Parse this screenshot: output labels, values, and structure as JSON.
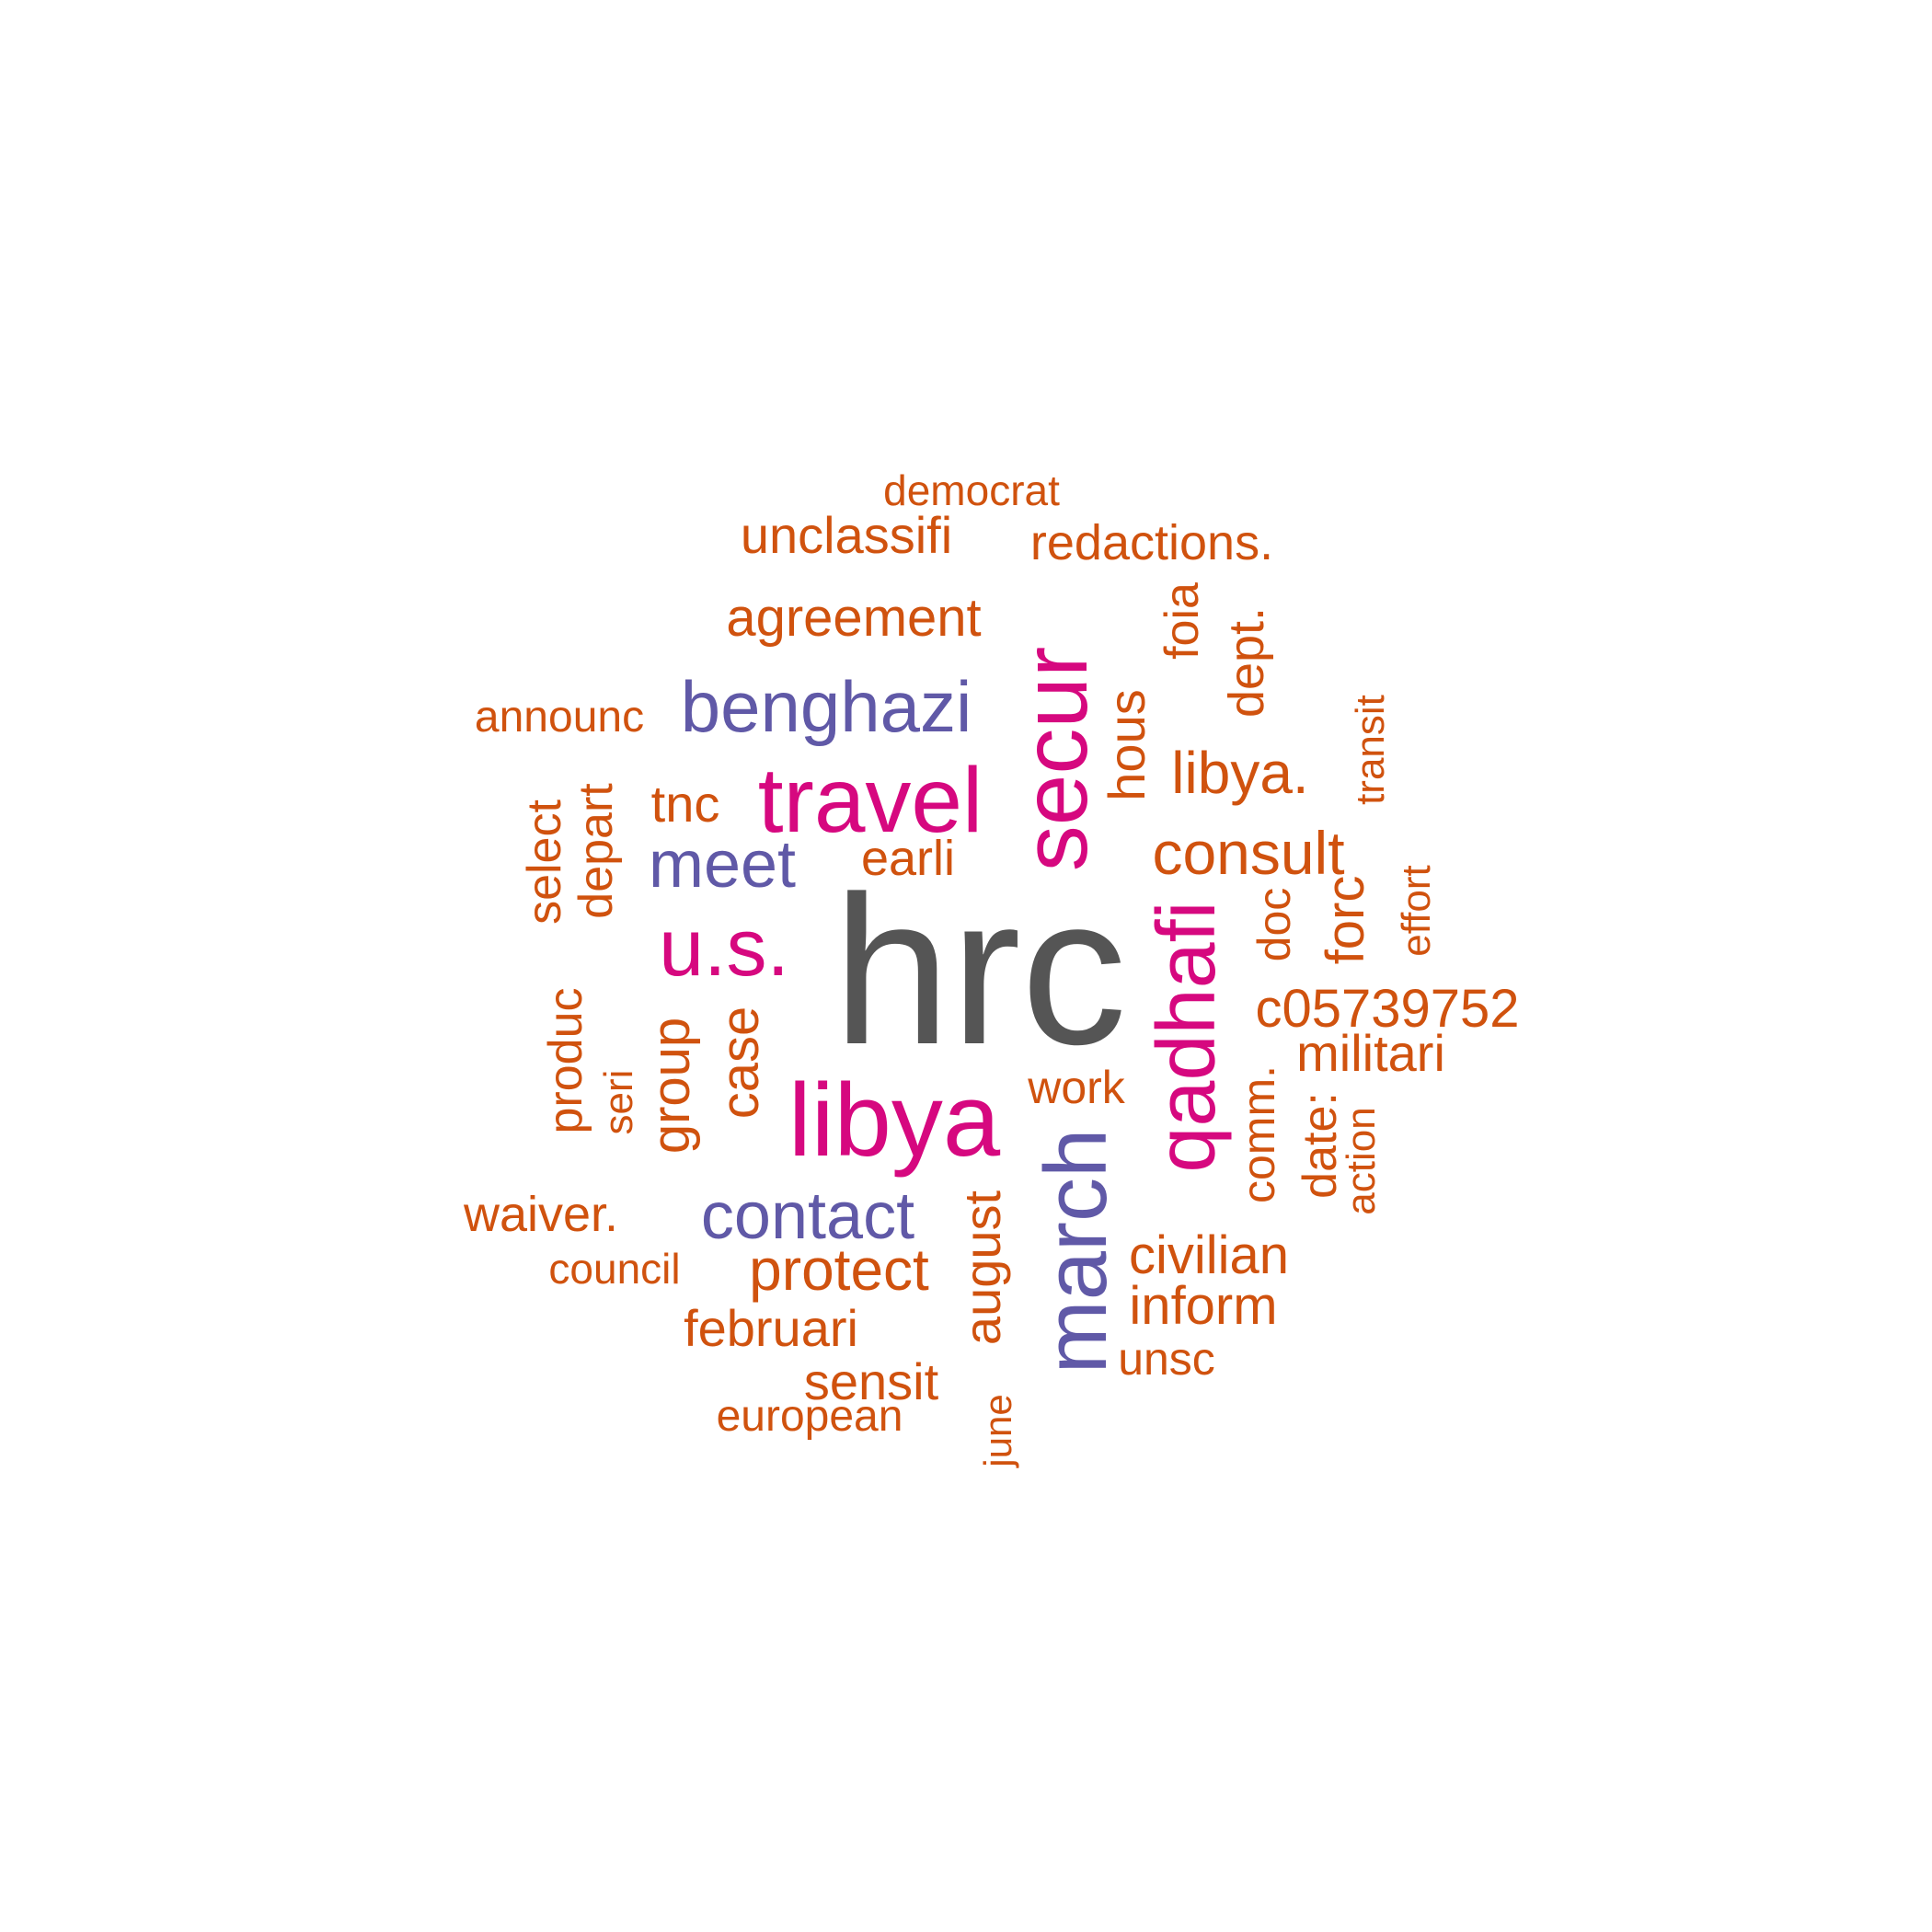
{
  "colors": {
    "grey": "#555555",
    "magenta": "#d6087f",
    "purple": "#6059a7",
    "orange": "#d0520e"
  },
  "words": [
    {
      "text": "hrc",
      "color": "grey"
    },
    {
      "text": "libya",
      "color": "magenta"
    },
    {
      "text": "travel",
      "color": "magenta"
    },
    {
      "text": "u.s.",
      "color": "magenta"
    },
    {
      "text": "secur",
      "color": "magenta"
    },
    {
      "text": "qadhafi",
      "color": "magenta"
    },
    {
      "text": "march",
      "color": "purple"
    },
    {
      "text": "benghazi",
      "color": "purple"
    },
    {
      "text": "meet",
      "color": "purple"
    },
    {
      "text": "contact",
      "color": "purple"
    },
    {
      "text": "democrat",
      "color": "orange"
    },
    {
      "text": "unclassifi",
      "color": "orange"
    },
    {
      "text": "redactions.",
      "color": "orange"
    },
    {
      "text": "agreement",
      "color": "orange"
    },
    {
      "text": "foia",
      "color": "orange"
    },
    {
      "text": "dept.",
      "color": "orange"
    },
    {
      "text": "announc",
      "color": "orange"
    },
    {
      "text": "hous",
      "color": "orange"
    },
    {
      "text": "transit",
      "color": "orange"
    },
    {
      "text": "libya.",
      "color": "orange"
    },
    {
      "text": "tnc",
      "color": "orange"
    },
    {
      "text": "select",
      "color": "orange"
    },
    {
      "text": "depart",
      "color": "orange"
    },
    {
      "text": "earli",
      "color": "orange"
    },
    {
      "text": "consult",
      "color": "orange"
    },
    {
      "text": "effort",
      "color": "orange"
    },
    {
      "text": "doc",
      "color": "orange"
    },
    {
      "text": "forc",
      "color": "orange"
    },
    {
      "text": "c05739752",
      "color": "orange"
    },
    {
      "text": "produc",
      "color": "orange"
    },
    {
      "text": "group",
      "color": "orange"
    },
    {
      "text": "case",
      "color": "orange"
    },
    {
      "text": "militari",
      "color": "orange"
    },
    {
      "text": "seri",
      "color": "orange"
    },
    {
      "text": "work",
      "color": "orange"
    },
    {
      "text": "comm.",
      "color": "orange"
    },
    {
      "text": "date:",
      "color": "orange"
    },
    {
      "text": "action",
      "color": "orange"
    },
    {
      "text": "waiver.",
      "color": "orange"
    },
    {
      "text": "august",
      "color": "orange"
    },
    {
      "text": "council",
      "color": "orange"
    },
    {
      "text": "protect",
      "color": "orange"
    },
    {
      "text": "civilian",
      "color": "orange"
    },
    {
      "text": "inform",
      "color": "orange"
    },
    {
      "text": "februari",
      "color": "orange"
    },
    {
      "text": "unsc",
      "color": "orange"
    },
    {
      "text": "sensit",
      "color": "orange"
    },
    {
      "text": "european",
      "color": "orange"
    },
    {
      "text": "june",
      "color": "orange"
    }
  ]
}
